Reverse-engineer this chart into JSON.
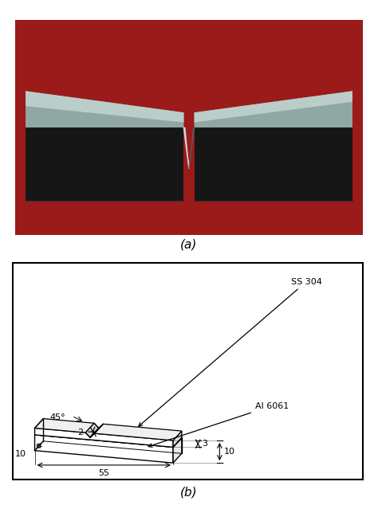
{
  "fig_width": 4.74,
  "fig_height": 6.34,
  "dpi": 100,
  "label_a": "(a)",
  "label_b": "(b)",
  "background_color": "#ffffff",
  "annotation": {
    "ss304": "SS 304",
    "al6061": "Al 6061",
    "angle": "45°",
    "dim_2": "2",
    "dim_3": "3",
    "dim_10_right": "10",
    "dim_55": "55",
    "dim_10_left": "10"
  },
  "photo": {
    "bg_color": "#9b1a1a",
    "body_left_color": "#1c1c1c",
    "body_right_color": "#1c1c1c",
    "top_left_color": "#a8b8b4",
    "top_right_color": "#a8b8b4",
    "notch_color": "#555555",
    "notch_bright": "#b0c0bc"
  }
}
